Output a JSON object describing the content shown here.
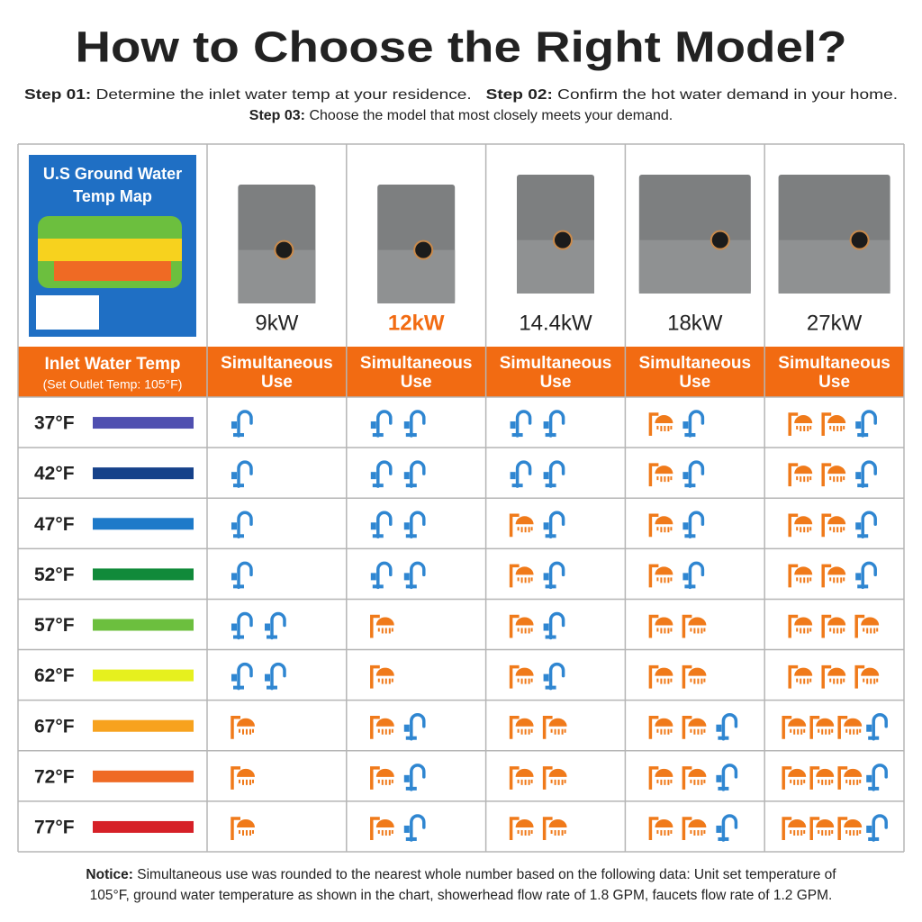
{
  "title": "How to Choose the Right Model?",
  "steps": [
    {
      "label": "Step 01:",
      "text": " Determine the inlet water temp at your residence."
    },
    {
      "label": "Step 02:",
      "text": " Confirm the hot water demand in your home."
    },
    {
      "label": "Step 03:",
      "text": " Choose the model that most closely meets your demand."
    }
  ],
  "map_title": [
    "U.S Ground Water",
    "Temp Map"
  ],
  "highlight_color": "#f26b12",
  "models": [
    {
      "name": "9kW",
      "highlight": false
    },
    {
      "name": "12kW",
      "highlight": true
    },
    {
      "name": "14.4kW",
      "highlight": false
    },
    {
      "name": "18kW",
      "highlight": false
    },
    {
      "name": "27kW",
      "highlight": false
    }
  ],
  "header": {
    "label": "Inlet Water Temp",
    "sublabel": "(Set Outlet Temp: 105°F)",
    "column_label": [
      "Simultaneous",
      "Use"
    ]
  },
  "rows": [
    {
      "temp": "37°F",
      "color": "#4f4fb0",
      "cells": [
        {
          "showers": 0,
          "faucets": 1
        },
        {
          "showers": 0,
          "faucets": 2
        },
        {
          "showers": 0,
          "faucets": 2
        },
        {
          "showers": 1,
          "faucets": 1
        },
        {
          "showers": 2,
          "faucets": 1
        }
      ]
    },
    {
      "temp": "42°F",
      "color": "#15418a",
      "cells": [
        {
          "showers": 0,
          "faucets": 1
        },
        {
          "showers": 0,
          "faucets": 2
        },
        {
          "showers": 0,
          "faucets": 2
        },
        {
          "showers": 1,
          "faucets": 1
        },
        {
          "showers": 2,
          "faucets": 1
        }
      ]
    },
    {
      "temp": "47°F",
      "color": "#1e7ac9",
      "cells": [
        {
          "showers": 0,
          "faucets": 1
        },
        {
          "showers": 0,
          "faucets": 2
        },
        {
          "showers": 1,
          "faucets": 1
        },
        {
          "showers": 1,
          "faucets": 1
        },
        {
          "showers": 2,
          "faucets": 1
        }
      ]
    },
    {
      "temp": "52°F",
      "color": "#118a3a",
      "cells": [
        {
          "showers": 0,
          "faucets": 1
        },
        {
          "showers": 0,
          "faucets": 2
        },
        {
          "showers": 1,
          "faucets": 1
        },
        {
          "showers": 1,
          "faucets": 1
        },
        {
          "showers": 2,
          "faucets": 1
        }
      ]
    },
    {
      "temp": "57°F",
      "color": "#6cbf3e",
      "cells": [
        {
          "showers": 0,
          "faucets": 2
        },
        {
          "showers": 1,
          "faucets": 0
        },
        {
          "showers": 1,
          "faucets": 1
        },
        {
          "showers": 2,
          "faucets": 0
        },
        {
          "showers": 3,
          "faucets": 0
        }
      ]
    },
    {
      "temp": "62°F",
      "color": "#e6f01e",
      "cells": [
        {
          "showers": 0,
          "faucets": 2
        },
        {
          "showers": 1,
          "faucets": 0
        },
        {
          "showers": 1,
          "faucets": 1
        },
        {
          "showers": 2,
          "faucets": 0
        },
        {
          "showers": 3,
          "faucets": 0
        }
      ]
    },
    {
      "temp": "67°F",
      "color": "#f7a21e",
      "cells": [
        {
          "showers": 1,
          "faucets": 0
        },
        {
          "showers": 1,
          "faucets": 1
        },
        {
          "showers": 2,
          "faucets": 0
        },
        {
          "showers": 2,
          "faucets": 1
        },
        {
          "showers": 3,
          "faucets": 1
        }
      ]
    },
    {
      "temp": "72°F",
      "color": "#ef6a24",
      "cells": [
        {
          "showers": 1,
          "faucets": 0
        },
        {
          "showers": 1,
          "faucets": 1
        },
        {
          "showers": 2,
          "faucets": 0
        },
        {
          "showers": 2,
          "faucets": 1
        },
        {
          "showers": 3,
          "faucets": 1
        }
      ]
    },
    {
      "temp": "77°F",
      "color": "#d62027",
      "cells": [
        {
          "showers": 1,
          "faucets": 0
        },
        {
          "showers": 1,
          "faucets": 1
        },
        {
          "showers": 2,
          "faucets": 0
        },
        {
          "showers": 2,
          "faucets": 1
        },
        {
          "showers": 3,
          "faucets": 1
        }
      ]
    }
  ],
  "notice": {
    "label": "Notice:",
    "lines": [
      " Simultaneous use was rounded to the nearest whole number based on the following data: Unit set temperature of",
      "105°F, ground water temperature as shown in the chart, showerhead flow rate of 1.8 GPM, faucets flow rate of 1.2 GPM."
    ]
  }
}
